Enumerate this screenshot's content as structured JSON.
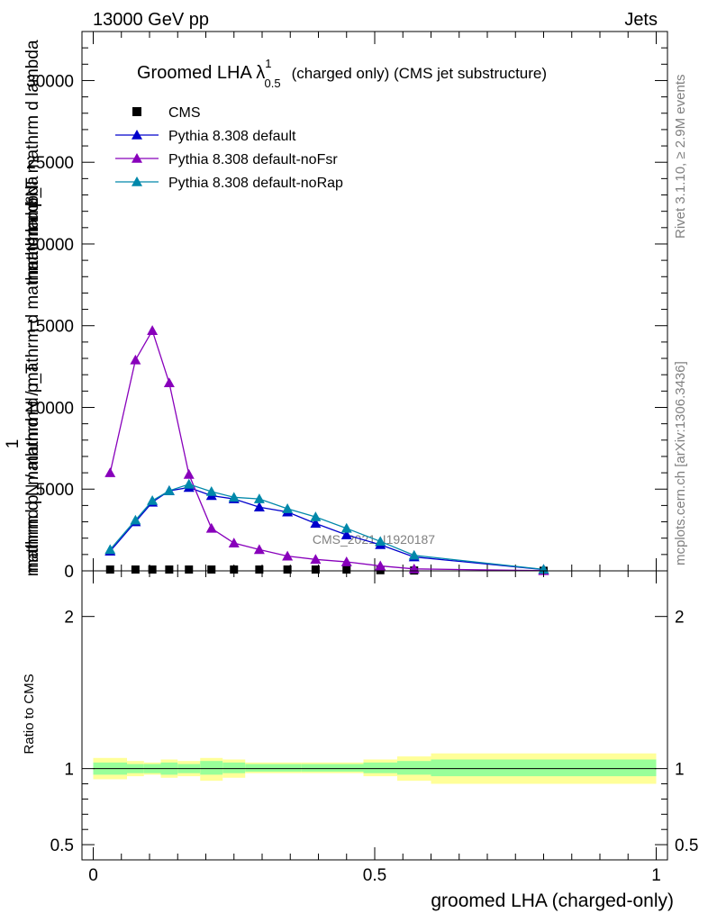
{
  "header": {
    "left": "13000 GeV pp",
    "right": "Jets"
  },
  "side_text": {
    "events": "Rivet 3.1.10, ≥ 2.9M events",
    "source": "mcplots.cern.ch [arXiv:1306.3436]"
  },
  "watermark": "CMS_2021_I1920187",
  "colors": {
    "cms": "#000000",
    "default": "#0000cc",
    "noFsr": "#8800bb",
    "noRap": "#0088aa",
    "band_inner": "#99ff99",
    "band_outer": "#ffff99"
  },
  "chart_data": [
    {
      "type": "line",
      "title_main": "Groomed LHA λ",
      "title_sup": "1",
      "title_sub": "0.5",
      "title_rest": "(charged only) (CMS jet substructure)",
      "ylabel_numer_1": "mathrm d²N",
      "ylabel_numer_2": "mathrm d p_T mathrm d lambda",
      "ylabel_denom_1": "1",
      "ylabel_denom_2": "mathrm d N / mathrm d p_T",
      "ylabel_denom_3": "mathrmd p_mathrmd N / mathrm d mathrm d lambda",
      "xlim": [
        -0.02,
        1.02
      ],
      "ylim": [
        0,
        33000
      ],
      "yticks": [
        0,
        5000,
        10000,
        15000,
        20000,
        25000,
        30000
      ],
      "ytick_labels": [
        "0",
        "5000",
        "10000",
        "15000",
        "20000",
        "25000",
        "30000"
      ],
      "legend_position": "top-left",
      "series": [
        {
          "name": "CMS",
          "marker": "square",
          "x": [
            0.03,
            0.075,
            0.105,
            0.135,
            0.17,
            0.21,
            0.25,
            0.295,
            0.345,
            0.395,
            0.45,
            0.51,
            0.57,
            0.8
          ],
          "y": [
            80,
            80,
            80,
            80,
            80,
            80,
            80,
            80,
            80,
            80,
            80,
            40,
            20,
            5
          ]
        },
        {
          "name": "Pythia 8.308 default",
          "marker": "triangle",
          "x": [
            0.03,
            0.075,
            0.105,
            0.135,
            0.17,
            0.21,
            0.25,
            0.295,
            0.345,
            0.395,
            0.45,
            0.51,
            0.57,
            0.8
          ],
          "y": [
            1200,
            3000,
            4200,
            4900,
            5100,
            4600,
            4400,
            3900,
            3600,
            2900,
            2200,
            1600,
            850,
            80
          ]
        },
        {
          "name": "Pythia 8.308 default-noFsr",
          "marker": "triangle",
          "x": [
            0.03,
            0.075,
            0.105,
            0.135,
            0.17,
            0.21,
            0.25,
            0.295,
            0.345,
            0.395,
            0.45,
            0.51,
            0.57,
            0.8
          ],
          "y": [
            6000,
            12900,
            14700,
            11500,
            5900,
            2600,
            1700,
            1300,
            900,
            700,
            550,
            300,
            120,
            10
          ]
        },
        {
          "name": "Pythia 8.308 default-noRap",
          "marker": "triangle",
          "x": [
            0.03,
            0.075,
            0.105,
            0.135,
            0.17,
            0.21,
            0.25,
            0.295,
            0.345,
            0.395,
            0.45,
            0.51,
            0.57,
            0.8
          ],
          "y": [
            1300,
            3100,
            4300,
            4900,
            5300,
            4850,
            4500,
            4400,
            3800,
            3300,
            2600,
            1800,
            950,
            90
          ]
        }
      ]
    },
    {
      "type": "area",
      "ylabel": "Ratio to CMS",
      "xlabel": "groomed LHA (charged-only)",
      "xlim": [
        -0.02,
        1.02
      ],
      "ylim": [
        0.4,
        2.3
      ],
      "xticks": [
        0,
        0.5,
        1
      ],
      "xtick_labels": [
        "0",
        "0.5",
        "1"
      ],
      "yticks": [
        0.5,
        1,
        2
      ],
      "ytick_labels": [
        "0.5",
        "1",
        "2"
      ],
      "bin_edges": [
        0,
        0.06,
        0.09,
        0.12,
        0.15,
        0.19,
        0.23,
        0.27,
        0.32,
        0.37,
        0.42,
        0.48,
        0.54,
        0.6,
        1.0
      ],
      "inner_band": [
        [
          0.96,
          1.04
        ],
        [
          0.97,
          1.03
        ],
        [
          0.97,
          1.03
        ],
        [
          0.96,
          1.04
        ],
        [
          0.97,
          1.03
        ],
        [
          0.96,
          1.05
        ],
        [
          0.97,
          1.04
        ],
        [
          0.98,
          1.03
        ],
        [
          0.98,
          1.03
        ],
        [
          0.98,
          1.03
        ],
        [
          0.98,
          1.03
        ],
        [
          0.97,
          1.04
        ],
        [
          0.96,
          1.05
        ],
        [
          0.95,
          1.06
        ]
      ],
      "outer_band": [
        [
          0.93,
          1.07
        ],
        [
          0.95,
          1.05
        ],
        [
          0.96,
          1.04
        ],
        [
          0.94,
          1.06
        ],
        [
          0.95,
          1.05
        ],
        [
          0.92,
          1.07
        ],
        [
          0.94,
          1.06
        ],
        [
          0.97,
          1.04
        ],
        [
          0.97,
          1.04
        ],
        [
          0.97,
          1.04
        ],
        [
          0.97,
          1.04
        ],
        [
          0.95,
          1.06
        ],
        [
          0.92,
          1.08
        ],
        [
          0.9,
          1.1
        ]
      ],
      "reference_line": 1
    }
  ]
}
